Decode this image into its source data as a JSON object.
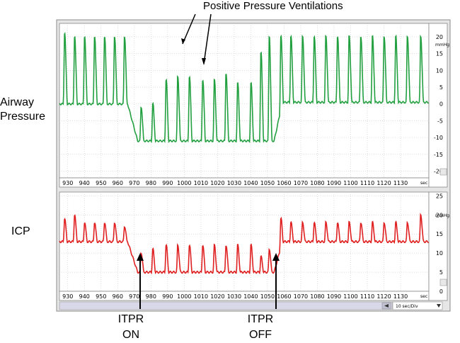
{
  "annotations": {
    "top_title": "Positive Pressure Ventilations",
    "airway_label_line1": "Airway",
    "airway_label_line2": "Pressure",
    "icp_label": "ICP",
    "itpr_on_line1": "ITPR",
    "itpr_on_line2": "ON",
    "itpr_off_line1": "ITPR",
    "itpr_off_line2": "OFF",
    "timebase": "10 sec/Div"
  },
  "colors": {
    "airway_trace": "#22a040",
    "icp_trace": "#e02020",
    "grid": "#c8c8c8",
    "panel_bg": "#ffffff",
    "frame": "#7f7f7f",
    "scroll_bg": "#d8d8e8"
  },
  "chart_data": [
    {
      "type": "line",
      "name": "airway",
      "series": [
        {
          "name": "Airway Pressure",
          "color": "#22a040"
        }
      ],
      "xlim": [
        925,
        1147
      ],
      "ylim": [
        -22,
        24
      ],
      "unit_label": "mmHg",
      "x_unit_label": "sec",
      "x_ticks": [
        930,
        940,
        950,
        960,
        970,
        980,
        990,
        1000,
        1010,
        1020,
        1030,
        1040,
        1050,
        1060,
        1070,
        1080,
        1090,
        1100,
        1110,
        1120,
        1130
      ],
      "y_ticks": [
        20,
        15,
        10,
        5,
        0,
        -5,
        -10,
        -15,
        -20
      ],
      "baseline_pre": 0,
      "baseline_itpr": -11,
      "baseline_post": 0.5,
      "itpr_window": [
        966,
        1054
      ],
      "breath_times": [
        928,
        934,
        940,
        946,
        952,
        958,
        964,
        974,
        981,
        989,
        996,
        1003,
        1011,
        1018,
        1025,
        1032,
        1040,
        1046,
        1051,
        1058,
        1064,
        1071,
        1078,
        1085,
        1092,
        1099,
        1106,
        1113,
        1120,
        1127,
        1134,
        1142
      ],
      "breath_peaks": [
        21,
        20,
        20,
        20,
        20,
        20,
        20,
        -1,
        0,
        7,
        8,
        8,
        7,
        7,
        9,
        6,
        6,
        15,
        20,
        20,
        20,
        20,
        20,
        20,
        20,
        20,
        20,
        20,
        20,
        20,
        20,
        20
      ]
    },
    {
      "type": "line",
      "name": "icp",
      "series": [
        {
          "name": "ICP",
          "color": "#e02020"
        }
      ],
      "xlim": [
        925,
        1147
      ],
      "ylim": [
        0,
        26
      ],
      "unit_label": "mmHg",
      "x_unit_label": "sec",
      "x_ticks": [
        930,
        940,
        950,
        960,
        970,
        980,
        990,
        1000,
        1010,
        1020,
        1030,
        1040,
        1050,
        1060,
        1070,
        1080,
        1090,
        1100,
        1110,
        1120,
        1130
      ],
      "y_ticks": [
        25,
        20,
        15,
        10,
        5,
        0
      ],
      "baseline_pre": 13,
      "baseline_itpr": 5,
      "baseline_post": 13,
      "itpr_window": [
        966,
        1054
      ],
      "beat_times": [
        928,
        934,
        940,
        946,
        952,
        958,
        964,
        974,
        981,
        989,
        996,
        1003,
        1011,
        1018,
        1025,
        1032,
        1040,
        1046,
        1051,
        1058,
        1064,
        1071,
        1078,
        1085,
        1092,
        1099,
        1106,
        1113,
        1120,
        1127,
        1134,
        1142
      ],
      "beat_peaks": [
        19,
        20,
        18,
        18,
        18,
        18,
        17,
        10,
        11,
        12,
        12,
        12,
        12,
        12,
        12,
        12,
        12,
        9,
        11,
        19,
        18,
        18,
        18,
        18,
        18,
        18,
        18,
        18,
        18,
        18,
        18,
        20
      ]
    }
  ]
}
